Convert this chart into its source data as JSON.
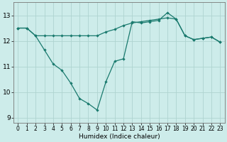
{
  "line1_x": [
    0,
    1,
    2,
    3,
    4,
    5,
    6,
    7,
    8,
    9,
    10,
    11,
    12,
    13,
    14,
    15,
    16,
    17,
    18,
    19,
    20,
    21,
    22,
    23
  ],
  "line1_y": [
    12.5,
    12.5,
    12.2,
    12.2,
    12.2,
    12.2,
    12.2,
    12.2,
    12.2,
    12.2,
    12.35,
    12.45,
    12.6,
    12.7,
    12.75,
    12.8,
    12.85,
    12.9,
    12.85,
    12.2,
    12.05,
    12.1,
    12.15,
    11.95
  ],
  "line2_x": [
    0,
    1,
    2,
    3,
    4,
    5,
    6,
    7,
    8,
    9,
    10,
    11,
    12,
    13,
    14,
    15,
    16,
    17,
    18,
    19,
    20,
    21,
    22,
    23
  ],
  "line2_y": [
    12.5,
    12.5,
    12.2,
    11.65,
    11.1,
    10.85,
    10.35,
    9.75,
    9.55,
    9.3,
    10.4,
    11.2,
    11.3,
    12.75,
    12.7,
    12.75,
    12.8,
    13.1,
    12.85,
    12.2,
    12.05,
    12.1,
    12.15,
    11.95
  ],
  "line_color": "#1a7a6e",
  "bg_color": "#cdecea",
  "grid_color": "#aed4d0",
  "xlabel": "Humidex (Indice chaleur)",
  "xlim_min": -0.5,
  "xlim_max": 23.5,
  "ylim_min": 8.8,
  "ylim_max": 13.5,
  "yticks": [
    9,
    10,
    11,
    12,
    13
  ],
  "xticks": [
    0,
    1,
    2,
    3,
    4,
    5,
    6,
    7,
    8,
    9,
    10,
    11,
    12,
    13,
    14,
    15,
    16,
    17,
    18,
    19,
    20,
    21,
    22,
    23
  ],
  "xlabel_fontsize": 6.5,
  "tick_fontsize": 5.5,
  "ytick_fontsize": 6.5
}
